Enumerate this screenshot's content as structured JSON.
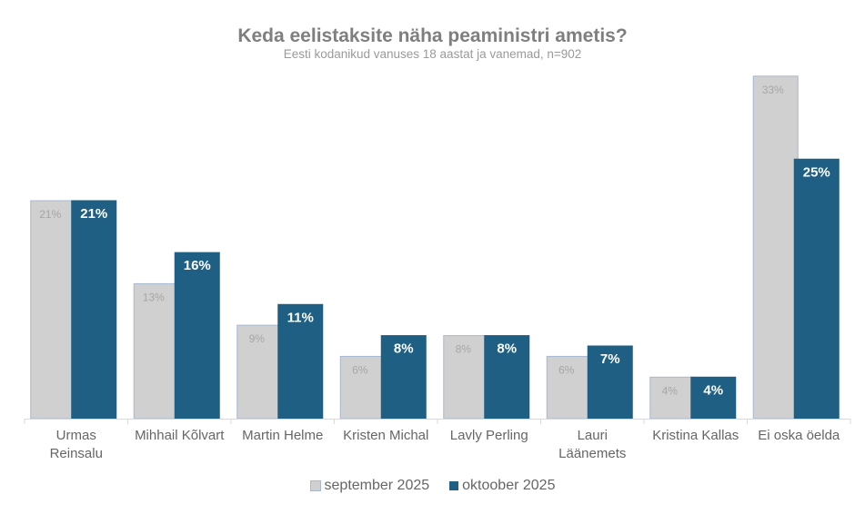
{
  "chart_data": {
    "type": "bar",
    "title": "Keda eelistaksite näha peaministri ametis?",
    "subtitle": "Eesti kodanikud vanuses 18 aastat ja vanemad, n=902",
    "categories": [
      [
        "Urmas",
        "Reinsalu"
      ],
      [
        "Mihhail Kõlvart"
      ],
      [
        "Martin Helme"
      ],
      [
        "Kristen Michal"
      ],
      [
        "Lavly Perling"
      ],
      [
        "Lauri",
        "Läänemets"
      ],
      [
        "Kristina Kallas"
      ],
      [
        "Ei oska öelda"
      ]
    ],
    "series": [
      {
        "name": "september 2025",
        "color": "#d0d0d0",
        "border": "#a8b8d0",
        "label_color": "#a6a6a6",
        "values": [
          21,
          13,
          9,
          6,
          8,
          6,
          4,
          33
        ],
        "labels": [
          "21%",
          "13%",
          "9%",
          "6%",
          "8%",
          "6%",
          "4%",
          "33%"
        ]
      },
      {
        "name": "oktoober 2025",
        "color": "#1f5f84",
        "border": "#1f5f84",
        "label_color": "#ffffff",
        "values": [
          21,
          16,
          11,
          8,
          8,
          7,
          4,
          25
        ],
        "labels": [
          "21%",
          "16%",
          "11%",
          "8%",
          "8%",
          "7%",
          "4%",
          "25%"
        ]
      }
    ],
    "ylim": [
      0,
      33
    ],
    "grid": false,
    "legend": "bottom"
  }
}
